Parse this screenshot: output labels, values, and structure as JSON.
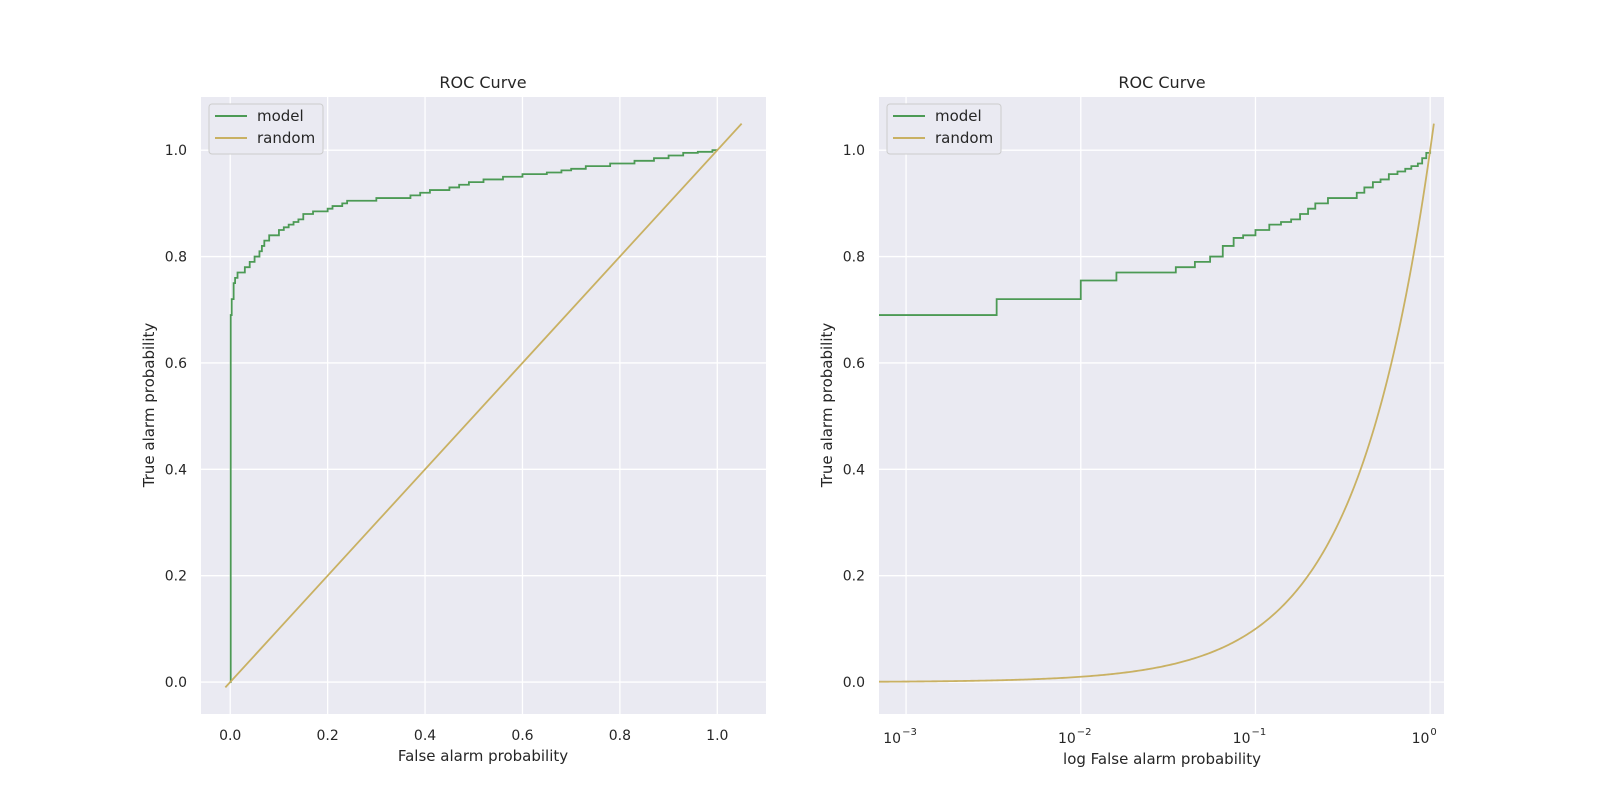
{
  "chart_data": [
    {
      "type": "line",
      "title": "ROC Curve",
      "xlabel": "False alarm probability",
      "ylabel": "True alarm probability",
      "xscale": "linear",
      "xlim": [
        -0.06,
        1.1
      ],
      "ylim": [
        -0.06,
        1.1
      ],
      "xticks": [
        0.0,
        0.2,
        0.4,
        0.6,
        0.8,
        1.0
      ],
      "xtick_labels": [
        "0.0",
        "0.2",
        "0.4",
        "0.6",
        "0.8",
        "1.0"
      ],
      "yticks": [
        0.0,
        0.2,
        0.4,
        0.6,
        0.8,
        1.0
      ],
      "ytick_labels": [
        "0.0",
        "0.2",
        "0.4",
        "0.6",
        "0.8",
        "1.0"
      ],
      "grid": true,
      "legend": "top-left",
      "series": [
        {
          "name": "model",
          "color": "#4c9a55",
          "step": true,
          "x": [
            0.0,
            0.001,
            0.003,
            0.007,
            0.01,
            0.015,
            0.02,
            0.03,
            0.04,
            0.05,
            0.06,
            0.065,
            0.07,
            0.08,
            0.1,
            0.11,
            0.12,
            0.13,
            0.14,
            0.15,
            0.17,
            0.2,
            0.21,
            0.23,
            0.24,
            0.26,
            0.3,
            0.35,
            0.37,
            0.39,
            0.41,
            0.45,
            0.47,
            0.49,
            0.52,
            0.56,
            0.6,
            0.65,
            0.68,
            0.7,
            0.73,
            0.78,
            0.83,
            0.87,
            0.9,
            0.93,
            0.96,
            0.99,
            1.0
          ],
          "y": [
            0.0,
            0.69,
            0.72,
            0.75,
            0.76,
            0.77,
            0.77,
            0.78,
            0.79,
            0.8,
            0.81,
            0.82,
            0.83,
            0.84,
            0.85,
            0.855,
            0.86,
            0.865,
            0.87,
            0.88,
            0.885,
            0.89,
            0.895,
            0.9,
            0.905,
            0.905,
            0.91,
            0.91,
            0.915,
            0.92,
            0.925,
            0.93,
            0.935,
            0.94,
            0.945,
            0.95,
            0.955,
            0.958,
            0.962,
            0.965,
            0.97,
            0.975,
            0.98,
            0.985,
            0.99,
            0.995,
            0.997,
            1.0,
            1.0
          ]
        },
        {
          "name": "random",
          "color": "#c9b163",
          "x": [
            -0.01,
            1.05
          ],
          "y": [
            -0.01,
            1.05
          ]
        }
      ]
    },
    {
      "type": "line",
      "title": "ROC Curve",
      "xlabel": "log False alarm probability",
      "ylabel": "True alarm probability",
      "xscale": "log",
      "xlim": [
        0.0007,
        1.2
      ],
      "ylim": [
        -0.06,
        1.1
      ],
      "xticks": [
        0.001,
        0.01,
        0.1,
        1.0
      ],
      "xtick_bases": [
        "10",
        "10",
        "10",
        "10"
      ],
      "xtick_exps": [
        "−3",
        "−2",
        "−1",
        "0"
      ],
      "yticks": [
        0.0,
        0.2,
        0.4,
        0.6,
        0.8,
        1.0
      ],
      "ytick_labels": [
        "0.0",
        "0.2",
        "0.4",
        "0.6",
        "0.8",
        "1.0"
      ],
      "grid": true,
      "legend": "top-left",
      "series": [
        {
          "name": "model",
          "color": "#4c9a55",
          "step": true,
          "x": [
            0.0007,
            0.0033,
            0.01,
            0.016,
            0.032,
            0.035,
            0.045,
            0.055,
            0.065,
            0.075,
            0.085,
            0.1,
            0.12,
            0.14,
            0.16,
            0.18,
            0.2,
            0.22,
            0.26,
            0.3,
            0.38,
            0.42,
            0.47,
            0.52,
            0.58,
            0.65,
            0.72,
            0.78,
            0.85,
            0.9,
            0.95,
            1.0
          ],
          "y": [
            0.69,
            0.72,
            0.755,
            0.77,
            0.77,
            0.78,
            0.79,
            0.8,
            0.82,
            0.835,
            0.84,
            0.85,
            0.86,
            0.865,
            0.87,
            0.88,
            0.89,
            0.9,
            0.91,
            0.91,
            0.92,
            0.93,
            0.94,
            0.945,
            0.955,
            0.96,
            0.965,
            0.97,
            0.975,
            0.985,
            0.995,
            1.0
          ]
        },
        {
          "name": "random",
          "color": "#c9b163",
          "x": "same as y (log-spaced from 0.0007 to 1.05)",
          "y_equals_x": true,
          "range": [
            0.0007,
            1.05
          ]
        }
      ]
    }
  ]
}
